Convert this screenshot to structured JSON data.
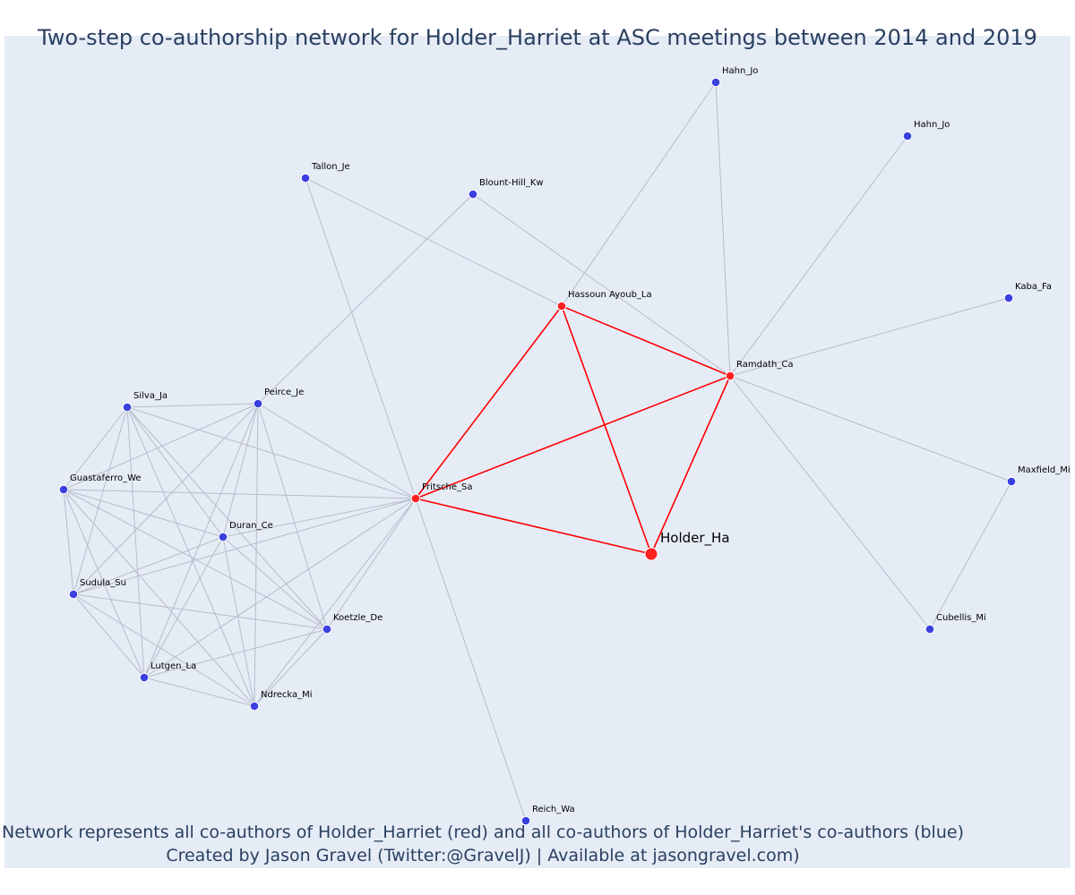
{
  "title": "Two-step co-authorship network for Holder_Harriet at ASC meetings between 2014 and 2019",
  "captions": {
    "line1": "Network represents all co-authors of Holder_Harriet (red) and all co-authors of Holder_Harriet's co-authors (blue)",
    "line2": "Created by Jason Gravel (Twitter:@GravelJ) | Available at jasongravel.com)"
  },
  "colors": {
    "background": "#e5ecf6",
    "red_node": "#ff2020",
    "blue_node": "#3a3fe0",
    "red_edge": "#ff0000",
    "gray_edge": "#b8bcc8",
    "text": "#2a3f5f"
  },
  "nodes": [
    {
      "id": "holder",
      "label": "Holder_Ha",
      "group": "focal"
    },
    {
      "id": "fritsche",
      "label": "Fritsche_Sa",
      "group": "red"
    },
    {
      "id": "hassoun",
      "label": "Hassoun Ayoub_La",
      "group": "red"
    },
    {
      "id": "ramdath",
      "label": "Ramdath_Ca",
      "group": "red"
    },
    {
      "id": "hahn1",
      "label": "Hahn_Jo",
      "group": "blue"
    },
    {
      "id": "hahn2",
      "label": "Hahn_Jo",
      "group": "blue"
    },
    {
      "id": "tallon",
      "label": "Tallon_Je",
      "group": "blue"
    },
    {
      "id": "blount",
      "label": "Blount-Hill_Kw",
      "group": "blue"
    },
    {
      "id": "kaba",
      "label": "Kaba_Fa",
      "group": "blue"
    },
    {
      "id": "maxfield",
      "label": "Maxfield_Mi",
      "group": "blue"
    },
    {
      "id": "cubellis",
      "label": "Cubellis_Mi",
      "group": "blue"
    },
    {
      "id": "reich",
      "label": "Reich_Wa",
      "group": "blue"
    },
    {
      "id": "silva",
      "label": "Silva_Ja",
      "group": "blue"
    },
    {
      "id": "peirce",
      "label": "Peirce_Je",
      "group": "blue"
    },
    {
      "id": "guastaferro",
      "label": "Guastaferro_We",
      "group": "blue"
    },
    {
      "id": "duran",
      "label": "Duran_Ce",
      "group": "blue"
    },
    {
      "id": "sudula",
      "label": "Sudula_Su",
      "group": "blue"
    },
    {
      "id": "koetzle",
      "label": "Koetzle_De",
      "group": "blue"
    },
    {
      "id": "lutgen",
      "label": "Lutgen_La",
      "group": "blue"
    },
    {
      "id": "ndrecka",
      "label": "Ndrecka_Mi",
      "group": "blue"
    }
  ],
  "edges": [
    [
      "holder",
      "fritsche",
      "red"
    ],
    [
      "holder",
      "hassoun",
      "red"
    ],
    [
      "holder",
      "ramdath",
      "red"
    ],
    [
      "fritsche",
      "hassoun",
      "red"
    ],
    [
      "fritsche",
      "ramdath",
      "red"
    ],
    [
      "hassoun",
      "ramdath",
      "red"
    ],
    [
      "hassoun",
      "hahn1",
      "gray"
    ],
    [
      "hassoun",
      "tallon",
      "gray"
    ],
    [
      "ramdath",
      "hahn1",
      "gray"
    ],
    [
      "ramdath",
      "hahn2",
      "gray"
    ],
    [
      "ramdath",
      "blount",
      "gray"
    ],
    [
      "ramdath",
      "kaba",
      "gray"
    ],
    [
      "ramdath",
      "maxfield",
      "gray"
    ],
    [
      "ramdath",
      "cubellis",
      "gray"
    ],
    [
      "maxfield",
      "cubellis",
      "gray"
    ],
    [
      "fritsche",
      "tallon",
      "gray"
    ],
    [
      "fritsche",
      "reich",
      "gray"
    ],
    [
      "blount",
      "peirce",
      "gray"
    ],
    [
      "fritsche",
      "silva",
      "gray"
    ],
    [
      "fritsche",
      "peirce",
      "gray"
    ],
    [
      "fritsche",
      "guastaferro",
      "gray"
    ],
    [
      "fritsche",
      "duran",
      "gray"
    ],
    [
      "fritsche",
      "sudula",
      "gray"
    ],
    [
      "fritsche",
      "koetzle",
      "gray"
    ],
    [
      "fritsche",
      "lutgen",
      "gray"
    ],
    [
      "fritsche",
      "ndrecka",
      "gray"
    ],
    [
      "silva",
      "peirce",
      "gray"
    ],
    [
      "silva",
      "guastaferro",
      "gray"
    ],
    [
      "silva",
      "duran",
      "gray"
    ],
    [
      "silva",
      "sudula",
      "gray"
    ],
    [
      "silva",
      "koetzle",
      "gray"
    ],
    [
      "silva",
      "lutgen",
      "gray"
    ],
    [
      "silva",
      "ndrecka",
      "gray"
    ],
    [
      "peirce",
      "guastaferro",
      "gray"
    ],
    [
      "peirce",
      "duran",
      "gray"
    ],
    [
      "peirce",
      "sudula",
      "gray"
    ],
    [
      "peirce",
      "koetzle",
      "gray"
    ],
    [
      "peirce",
      "lutgen",
      "gray"
    ],
    [
      "peirce",
      "ndrecka",
      "gray"
    ],
    [
      "guastaferro",
      "duran",
      "gray"
    ],
    [
      "guastaferro",
      "sudula",
      "gray"
    ],
    [
      "guastaferro",
      "koetzle",
      "gray"
    ],
    [
      "guastaferro",
      "lutgen",
      "gray"
    ],
    [
      "guastaferro",
      "ndrecka",
      "gray"
    ],
    [
      "duran",
      "sudula",
      "gray"
    ],
    [
      "duran",
      "koetzle",
      "gray"
    ],
    [
      "duran",
      "lutgen",
      "gray"
    ],
    [
      "duran",
      "ndrecka",
      "gray"
    ],
    [
      "sudula",
      "koetzle",
      "gray"
    ],
    [
      "sudula",
      "lutgen",
      "gray"
    ],
    [
      "sudula",
      "ndrecka",
      "gray"
    ],
    [
      "koetzle",
      "lutgen",
      "gray"
    ],
    [
      "koetzle",
      "ndrecka",
      "gray"
    ],
    [
      "lutgen",
      "ndrecka",
      "gray"
    ]
  ]
}
